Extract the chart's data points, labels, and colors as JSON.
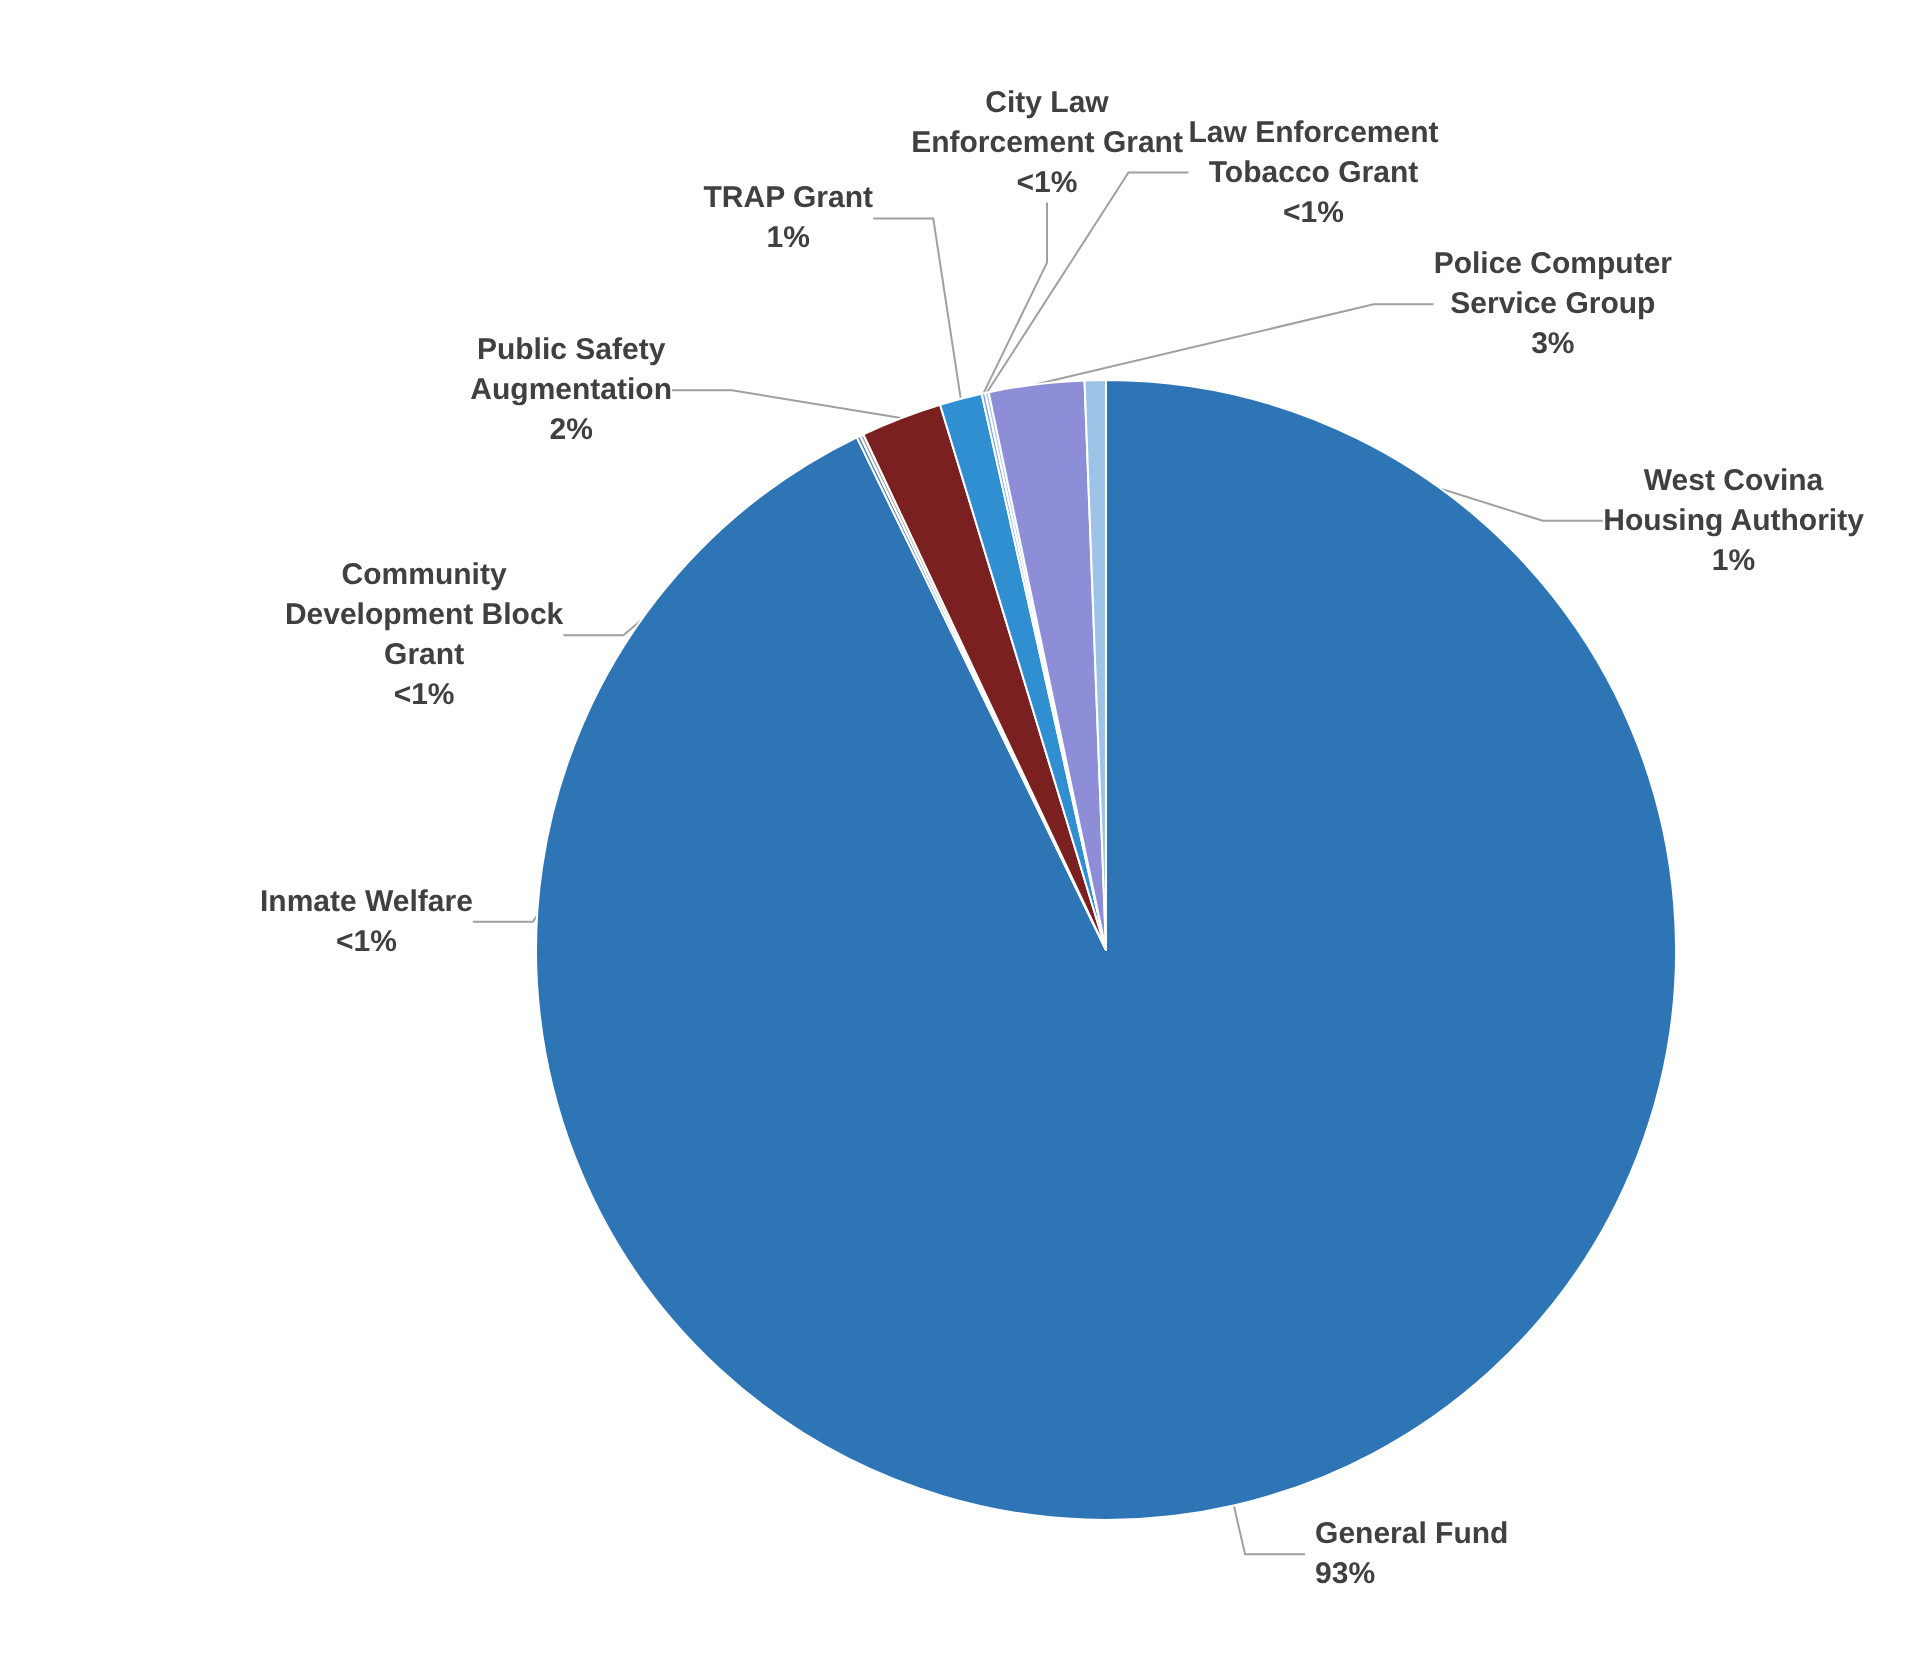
{
  "chart_data": {
    "type": "pie",
    "categories": [
      "General Fund",
      "Inmate Welfare",
      "Community Development Block Grant",
      "Public Safety Augmentation",
      "TRAP Grant",
      "City Law Enforcement Grant",
      "Law Enforcement Tobacco Grant",
      "Police Computer Service Group",
      "West Covina Housing Authority"
    ],
    "values": [
      92.8,
      0.1,
      0.1,
      2.3,
      1.2,
      0.1,
      0.1,
      2.7,
      0.6
    ],
    "value_labels": [
      "93%",
      "<1%",
      "<1%",
      "2%",
      "1%",
      "<1%",
      "<1%",
      "3%",
      "1%"
    ],
    "colors": [
      "#2e75b6",
      "#4a7ebb",
      "#a5a5a5",
      "#7b2020",
      "#2f8fd0",
      "#6fa8dc",
      "#b4c7e7",
      "#8e8ed8",
      "#9dc3e6"
    ],
    "legend": false
  }
}
